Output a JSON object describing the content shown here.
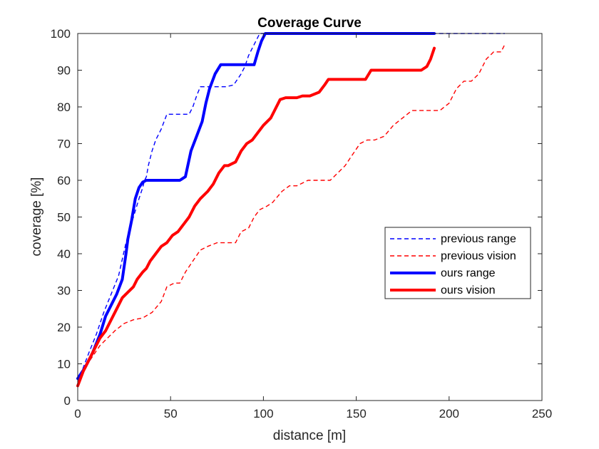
{
  "chart_data": {
    "type": "line",
    "title": "Coverage Curve",
    "xlabel": "distance [m]",
    "ylabel": "coverage [%]",
    "xlim": [
      0,
      250
    ],
    "ylim": [
      0,
      100
    ],
    "xticks": [
      "0",
      "50",
      "100",
      "150",
      "200",
      "250"
    ],
    "yticks": [
      "0",
      "10",
      "20",
      "30",
      "40",
      "50",
      "60",
      "70",
      "80",
      "90",
      "100"
    ],
    "grid": false,
    "legend_position": "right",
    "series": [
      {
        "name": "previous range",
        "color": "#0000ff",
        "style": "dashed",
        "x": [
          0,
          3,
          6,
          10,
          14,
          18,
          22,
          26,
          30,
          33,
          35,
          36,
          37,
          38,
          40,
          42,
          45,
          48,
          50,
          55,
          60,
          62,
          64,
          66,
          68,
          72,
          76,
          80,
          84,
          88,
          90,
          92,
          94,
          96,
          98,
          100,
          105,
          110,
          120,
          150,
          200,
          230
        ],
        "y": [
          5,
          9,
          13,
          18,
          24,
          29,
          34,
          43,
          50,
          55,
          58,
          60,
          61,
          64,
          68,
          71,
          74,
          78,
          78,
          78,
          78,
          80,
          83,
          85.5,
          85.5,
          85.5,
          85.5,
          85.5,
          86,
          89,
          91,
          94,
          96,
          98,
          100,
          100,
          100,
          100,
          100,
          100,
          100,
          100
        ]
      },
      {
        "name": "previous vision",
        "color": "#ff0000",
        "style": "dashed",
        "x": [
          0,
          4,
          8,
          12,
          16,
          20,
          25,
          30,
          35,
          40,
          45,
          48,
          52,
          55,
          58,
          62,
          66,
          70,
          75,
          80,
          85,
          88,
          92,
          95,
          98,
          102,
          105,
          110,
          114,
          118,
          124,
          128,
          132,
          136,
          140,
          144,
          148,
          152,
          156,
          160,
          165,
          170,
          175,
          180,
          185,
          190,
          195,
          200,
          204,
          208,
          212,
          216,
          220,
          224,
          228,
          230
        ],
        "y": [
          4,
          9,
          12,
          15,
          17,
          19,
          21,
          22,
          22.5,
          24,
          27,
          31,
          32,
          32,
          35,
          38,
          41,
          42,
          43,
          43,
          43,
          46,
          47,
          50,
          52,
          53,
          54,
          57,
          58.5,
          58.5,
          60,
          60,
          60,
          60,
          62,
          64,
          67,
          70,
          71,
          71,
          72,
          75,
          77,
          79,
          79,
          79,
          79,
          81,
          85,
          87,
          87,
          89,
          93,
          95,
          95,
          97
        ]
      },
      {
        "name": "ours range",
        "color": "#0000ff",
        "style": "solid",
        "x": [
          0,
          4,
          8,
          12,
          15,
          18,
          21,
          24,
          26,
          27,
          29,
          31,
          33,
          35,
          37,
          40,
          45,
          50,
          55,
          58,
          61,
          64,
          67,
          69,
          71,
          74,
          77,
          80,
          85,
          90,
          95,
          97,
          99,
          101,
          103,
          110,
          130,
          160,
          192
        ],
        "y": [
          6,
          9,
          13,
          18,
          23,
          26,
          29,
          33,
          40,
          44,
          49,
          55,
          58,
          59.5,
          60,
          60,
          60,
          60,
          60,
          61,
          68,
          72,
          76,
          81,
          85,
          89,
          91.5,
          91.5,
          91.5,
          91.5,
          91.5,
          95,
          98,
          100,
          100,
          100,
          100,
          100,
          100
        ]
      },
      {
        "name": "ours vision",
        "color": "#ff0000",
        "style": "solid",
        "x": [
          0,
          3,
          6,
          9,
          12,
          15,
          18,
          21,
          24,
          27,
          30,
          32,
          35,
          37,
          39,
          42,
          45,
          48,
          51,
          54,
          57,
          60,
          63,
          66,
          70,
          73,
          76,
          79,
          81,
          83,
          85,
          88,
          91,
          94,
          97,
          100,
          104,
          106,
          109,
          112,
          115,
          118,
          121,
          125,
          130,
          133,
          135,
          140,
          145,
          150,
          155,
          158,
          162,
          168,
          175,
          180,
          185,
          188,
          190,
          192
        ],
        "y": [
          4,
          8,
          11,
          14,
          17,
          19,
          22,
          25,
          28,
          29.5,
          31,
          33,
          35,
          36,
          38,
          40,
          42,
          43,
          45,
          46,
          48,
          50,
          53,
          55,
          57,
          59,
          62,
          64,
          64,
          64.5,
          65,
          68,
          70,
          71,
          73,
          75,
          77,
          79,
          82,
          82.5,
          82.5,
          82.5,
          83,
          83,
          84,
          86,
          87.5,
          87.5,
          87.5,
          87.5,
          87.5,
          90,
          90,
          90,
          90,
          90,
          90,
          91,
          93,
          96
        ]
      }
    ]
  }
}
